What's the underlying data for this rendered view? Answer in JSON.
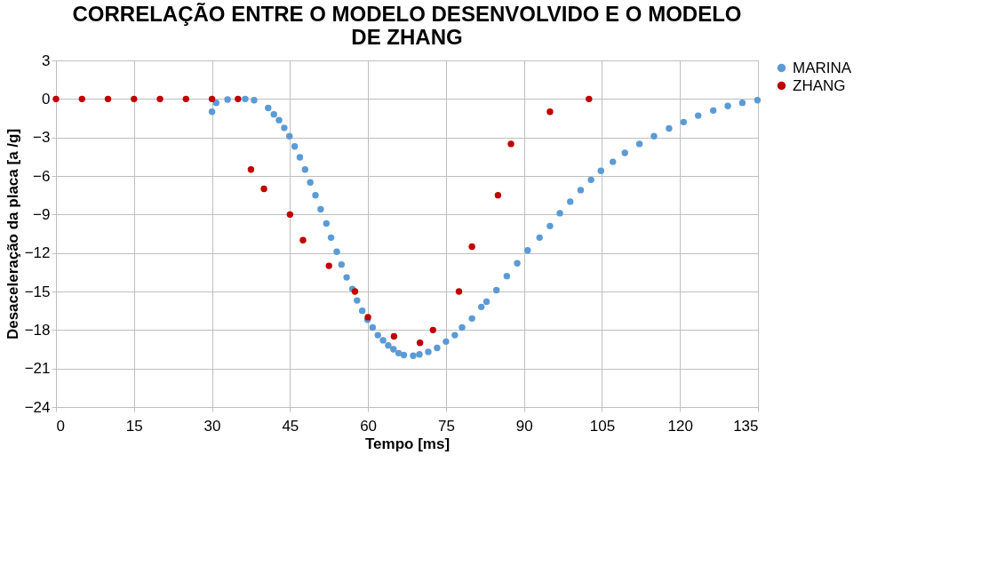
{
  "chart_data": {
    "type": "scatter",
    "title": "CORRELAÇÃO ENTRE O MODELO DESENVOLVIDO E O MODELO DE ZHANG",
    "xlabel": "Tempo [ms]",
    "ylabel": "Desaceleração da placa [a /g]",
    "xlim": [
      0,
      135
    ],
    "xticks": [
      0,
      15,
      30,
      45,
      60,
      75,
      90,
      105,
      120,
      135
    ],
    "ylim": [
      -24,
      3
    ],
    "yticks": [
      -24,
      -21,
      -18,
      -15,
      -12,
      -9,
      -6,
      -3,
      0,
      3
    ],
    "grid": true,
    "legend": "right",
    "marker": "circle",
    "series": [
      {
        "name": "MARINA",
        "color": "#5b9bd5",
        "x": [
          30,
          30.8,
          33,
          36.4,
          38.1,
          40.8,
          41.9,
          42.9,
          43.9,
          44.9,
          45.9,
          46.9,
          47.9,
          48.9,
          49.9,
          50.9,
          52,
          52.9,
          54,
          54.9,
          55.9,
          57,
          57.9,
          58.9,
          59.9,
          60.9,
          61.9,
          62.9,
          63.9,
          64.9,
          65.9,
          66.9,
          68.7,
          69.9,
          71.6,
          73.3,
          75,
          76.7,
          78.1,
          80,
          81.8,
          82.8,
          84.7,
          86.7,
          88.7,
          90.7,
          93,
          95,
          96.9,
          98.9,
          100.9,
          102.9,
          104.8,
          107.1,
          109.4,
          112.2,
          115,
          117.9,
          120.7,
          123.5,
          126.4,
          129.2,
          132,
          134.9
        ],
        "values": [
          -1,
          -0.3,
          -0.05,
          0,
          -0.1,
          -0.7,
          -1.2,
          -1.65,
          -2.25,
          -2.9,
          -3.7,
          -4.55,
          -5.5,
          -6.5,
          -7.5,
          -8.6,
          -9.7,
          -10.8,
          -11.9,
          -12.9,
          -13.9,
          -14.8,
          -15.7,
          -16.5,
          -17.2,
          -17.8,
          -18.4,
          -18.8,
          -19.2,
          -19.5,
          -19.8,
          -19.95,
          -20,
          -19.9,
          -19.7,
          -19.4,
          -18.9,
          -18.4,
          -17.8,
          -17.1,
          -16.2,
          -15.8,
          -14.9,
          -13.8,
          -12.8,
          -11.8,
          -10.8,
          -9.9,
          -8.9,
          -8,
          -7.1,
          -6.3,
          -5.6,
          -4.9,
          -4.2,
          -3.5,
          -2.9,
          -2.3,
          -1.8,
          -1.3,
          -0.9,
          -0.55,
          -0.3,
          -0.1
        ]
      },
      {
        "name": "ZHANG",
        "color": "#c00000",
        "x": [
          0,
          5,
          10,
          15,
          20,
          25,
          30,
          35,
          37.5,
          40,
          45,
          47.5,
          52.5,
          57.5,
          60,
          65,
          70,
          72.5,
          77.5,
          80,
          85,
          87.5,
          95,
          102.5
        ],
        "values": [
          0,
          0,
          0,
          0,
          0,
          0,
          0,
          0,
          -5.5,
          -7,
          -9,
          -11,
          -13,
          -15,
          -17,
          -18.5,
          -19,
          -18,
          -15,
          -11.5,
          -7.5,
          -3.5,
          -1,
          0
        ]
      }
    ]
  }
}
